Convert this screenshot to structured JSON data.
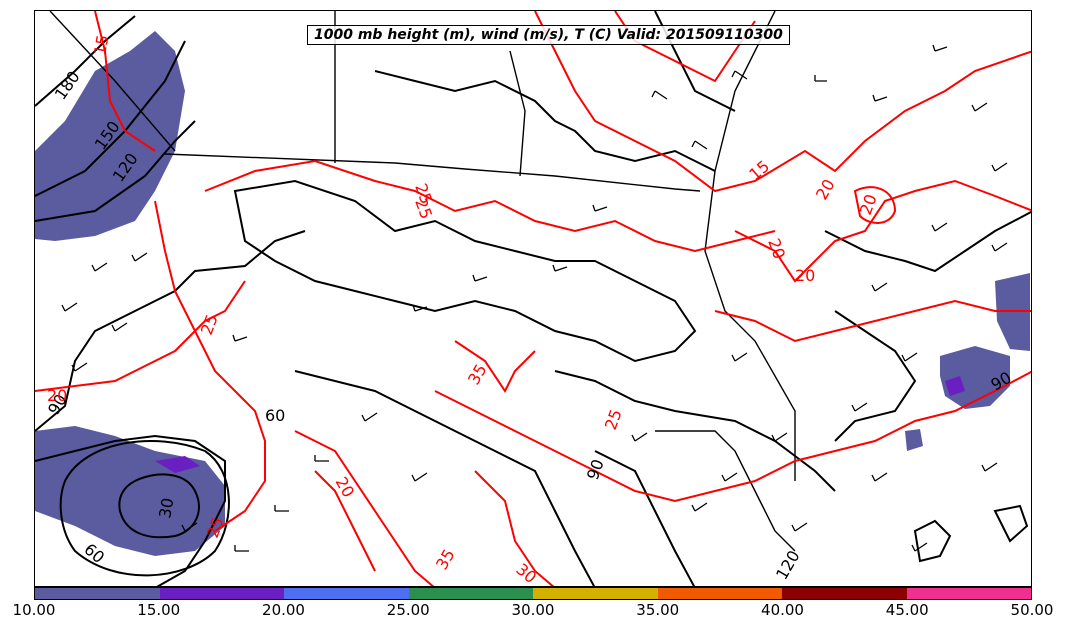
{
  "title": "1000 mb height (m), wind (m/s), T (C) Valid: 201509110300",
  "colors": {
    "temperature_contour": "#ff0000",
    "height_contour": "#000000",
    "borders": "#000000",
    "wind_barb": "#000000"
  },
  "colorbar": {
    "colors": [
      "#5b5b9f",
      "#6a1fc2",
      "#4f6ff2",
      "#2b8f4f",
      "#d4b000",
      "#f05a00",
      "#8b0000",
      "#f0308f"
    ],
    "ticks": [
      "10.00",
      "15.00",
      "20.00",
      "25.00",
      "30.00",
      "35.00",
      "40.00",
      "45.00",
      "50.00"
    ]
  },
  "contour_labels": {
    "height": [
      "180",
      "150",
      "120",
      "90",
      "60",
      "30",
      "120",
      "90",
      "60",
      "90"
    ],
    "temperature": [
      "15",
      "20",
      "25",
      "25",
      "20",
      "25",
      "30",
      "35",
      "35",
      "20",
      "25",
      "15",
      "20",
      "20",
      "20",
      "25"
    ]
  }
}
